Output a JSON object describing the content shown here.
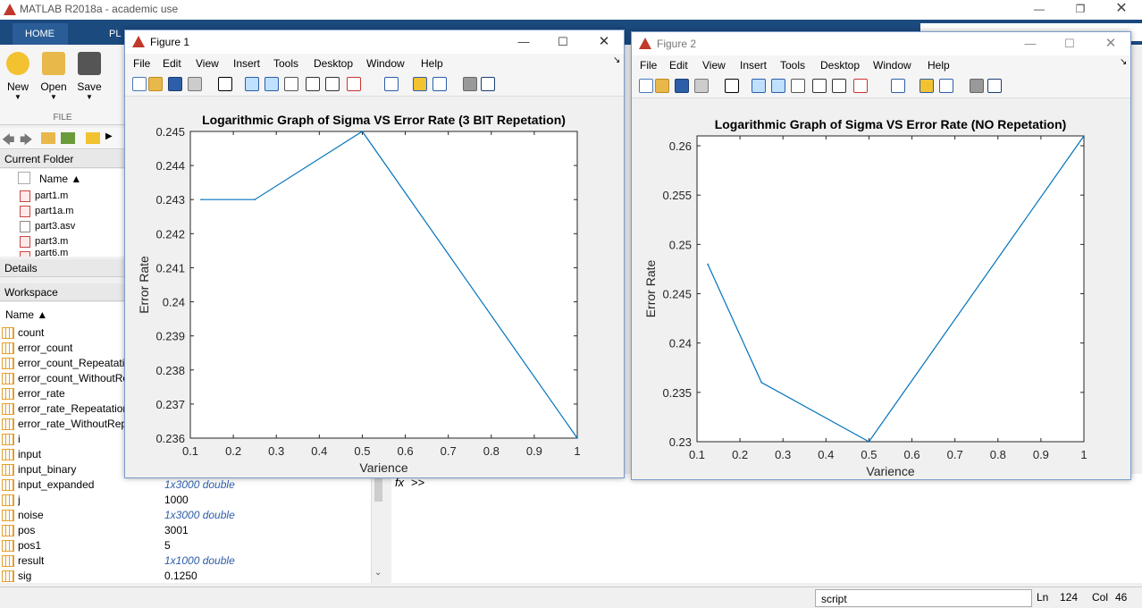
{
  "app": {
    "title": "MATLAB R2018a - academic use"
  },
  "ribbon": {
    "tabs": [
      "HOME",
      "PL"
    ],
    "buttons": {
      "new": "New",
      "open": "Open",
      "save": "Save"
    },
    "section": "FILE"
  },
  "current_folder": {
    "header": "Current Folder",
    "column": "Name ▲",
    "files": [
      "part1.m",
      "part1a.m",
      "part3.asv",
      "part3.m",
      "part6.m"
    ],
    "details": "Details"
  },
  "workspace": {
    "header": "Workspace",
    "column": "Name ▲",
    "vars": [
      {
        "name": "count",
        "value": ""
      },
      {
        "name": "error_count",
        "value": ""
      },
      {
        "name": "error_count_Repeatation",
        "value": ""
      },
      {
        "name": "error_count_WithoutRe",
        "value": ""
      },
      {
        "name": "error_rate",
        "value": ""
      },
      {
        "name": "error_rate_Repeatation",
        "value": ""
      },
      {
        "name": "error_rate_WithoutRep",
        "value": ""
      },
      {
        "name": "i",
        "value": ""
      },
      {
        "name": "input",
        "value": ""
      },
      {
        "name": "input_binary",
        "value": ""
      },
      {
        "name": "input_expanded",
        "value": "1x3000 double"
      },
      {
        "name": "j",
        "value": "1000"
      },
      {
        "name": "noise",
        "value": "1x3000 double"
      },
      {
        "name": "pos",
        "value": "3001"
      },
      {
        "name": "pos1",
        "value": "5"
      },
      {
        "name": "result",
        "value": "1x1000 double"
      },
      {
        "name": "sig",
        "value": "0.1250"
      }
    ]
  },
  "command": {
    "prompt": ">>",
    "fx": "fx"
  },
  "status": {
    "mode": "script",
    "ln_label": "Ln",
    "ln": "124",
    "col_label": "Col",
    "col": "46"
  },
  "menus": [
    "File",
    "Edit",
    "View",
    "Insert",
    "Tools",
    "Desktop",
    "Window",
    "Help"
  ],
  "colors": {
    "line": "#0072bd",
    "ribbon": "#1b4a7e"
  },
  "figures": [
    {
      "title": "Figure 1",
      "active": true
    },
    {
      "title": "Figure 2",
      "active": false
    }
  ],
  "chart_data": [
    {
      "type": "line",
      "title": "Logarithmic Graph of Sigma VS Error Rate (3 BIT Repetation)",
      "xlabel": "Varience",
      "ylabel": "Error Rate",
      "xlim": [
        0.1,
        1
      ],
      "ylim": [
        0.236,
        0.245
      ],
      "xticks": [
        "0.1",
        "0.2",
        "0.3",
        "0.4",
        "0.5",
        "0.6",
        "0.7",
        "0.8",
        "0.9",
        "1"
      ],
      "yticks": [
        "0.236",
        "0.237",
        "0.238",
        "0.239",
        "0.24",
        "0.241",
        "0.242",
        "0.243",
        "0.244",
        "0.245"
      ],
      "x": [
        0.125,
        0.25,
        0.5,
        1.0
      ],
      "y": [
        0.243,
        0.243,
        0.245,
        0.236
      ]
    },
    {
      "type": "line",
      "title": "Logarithmic Graph of Sigma VS Error Rate (NO Repetation)",
      "xlabel": "Varience",
      "ylabel": "Error Rate",
      "xlim": [
        0.1,
        1
      ],
      "ylim": [
        0.23,
        0.261
      ],
      "xticks": [
        "0.1",
        "0.2",
        "0.3",
        "0.4",
        "0.5",
        "0.6",
        "0.7",
        "0.8",
        "0.9",
        "1"
      ],
      "yticks": [
        "0.23",
        "0.235",
        "0.24",
        "0.245",
        "0.25",
        "0.255",
        "0.26"
      ],
      "x": [
        0.125,
        0.25,
        0.5,
        1.0
      ],
      "y": [
        0.248,
        0.236,
        0.23,
        0.261
      ]
    }
  ]
}
